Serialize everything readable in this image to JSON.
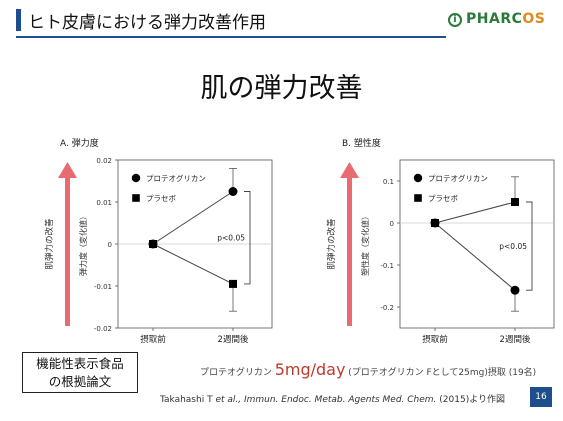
{
  "slide_title": "ヒト皮膚における弾力改善作用",
  "logo": {
    "mark": "i",
    "text_main": "PHARC",
    "text_accent": "OS"
  },
  "heading": "肌の弾力改善",
  "chart_data": [
    {
      "type": "line",
      "panel_label": "A. 弾力度",
      "side_label": "肌弾力の改善",
      "ylabel": "弾力度（変化値）",
      "categories": [
        "摂取前",
        "2週間後"
      ],
      "ylim": [
        -0.02,
        0.02
      ],
      "yticks": [
        "0.02",
        "0.01",
        "0",
        "-0.01",
        "-0.02"
      ],
      "ytick_values": [
        0.02,
        0.01,
        0,
        -0.01,
        -0.02
      ],
      "series": [
        {
          "name": "プロテオグリカン",
          "marker": "circle",
          "values": [
            0,
            0.0125
          ],
          "error": [
            0,
            0.0055
          ]
        },
        {
          "name": "プラセボ",
          "marker": "square",
          "values": [
            0,
            -0.0095
          ],
          "error": [
            0,
            0.0065
          ]
        }
      ],
      "annotation": "p<0.05"
    },
    {
      "type": "line",
      "panel_label": "B. 塑性度",
      "side_label": "肌弾力の改善",
      "ylabel": "塑性度（変化値）",
      "categories": [
        "摂取前",
        "2週間後"
      ],
      "ylim": [
        -0.25,
        0.15
      ],
      "yticks": [
        "0.1",
        "0",
        "-0.1",
        "-0.2"
      ],
      "ytick_values": [
        0.1,
        0,
        -0.1,
        -0.2
      ],
      "series": [
        {
          "name": "プロテオグリカン",
          "marker": "circle",
          "values": [
            0,
            -0.16
          ],
          "error": [
            0,
            0.05
          ]
        },
        {
          "name": "プラセボ",
          "marker": "square",
          "values": [
            0,
            0.05
          ],
          "error": [
            0,
            0.06
          ]
        }
      ],
      "annotation": "p<0.05"
    }
  ],
  "footer_box": {
    "line1": "機能性表示食品",
    "line2": "の根拠論文"
  },
  "dose": {
    "prefix": "プロテオグリカン ",
    "amount": "5mg/day",
    "suffix": " (プロテオグリカン Fとして25mg)摂取 (19名)"
  },
  "citation": {
    "authors": "Takahashi T ",
    "journal": "et al., Immun. Endoc. Metab. Agents Med. Chem.",
    "rest": " (2015)より作図"
  },
  "page_number": "16",
  "colors": {
    "arrow": "#e86a72",
    "brand_blue": "#1f4e8c",
    "dose_red": "#c0392b"
  }
}
